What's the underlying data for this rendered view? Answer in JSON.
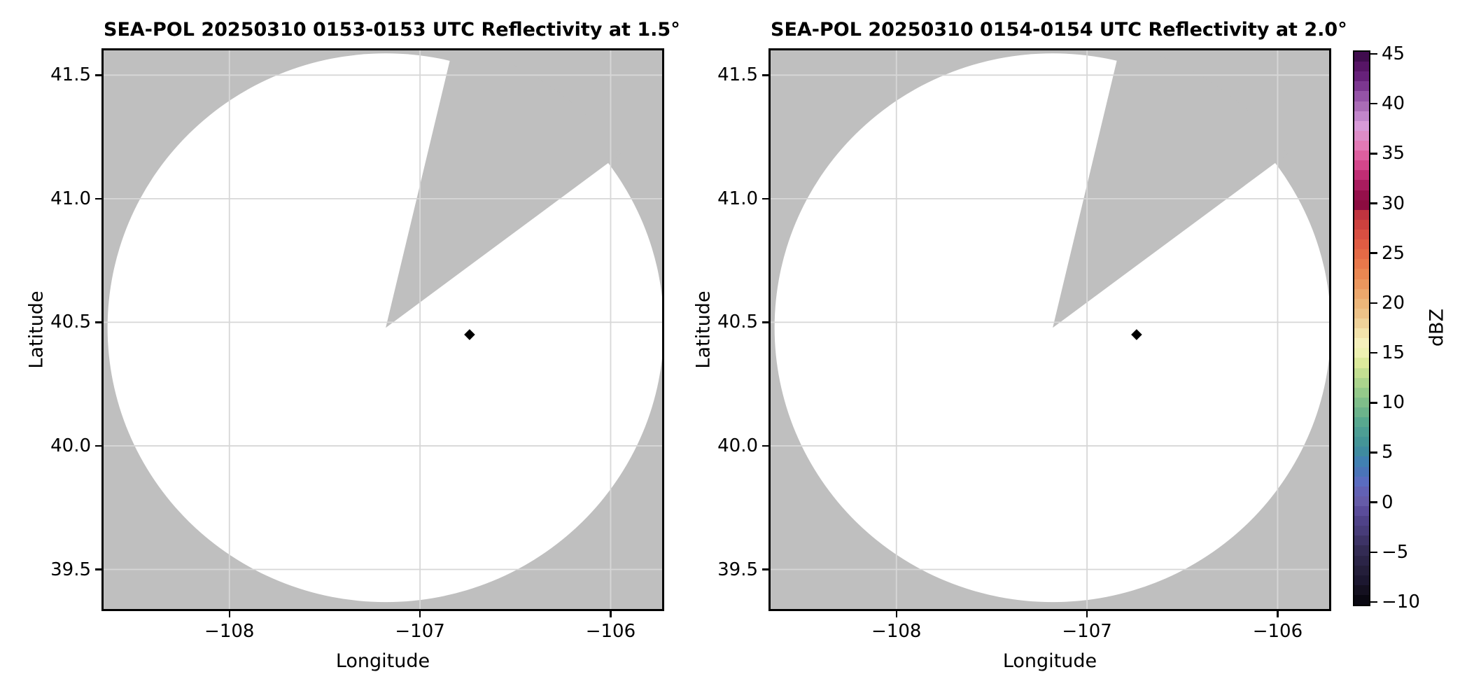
{
  "figure_colors": {
    "background": "#ffffff",
    "no_data_gray": "#bfbfbf",
    "coverage_white": "#ffffff",
    "gridline": "#d7d7d7",
    "frame": "#000000",
    "text": "#000000",
    "echo_point": "#000000"
  },
  "chart_data": [
    {
      "type": "heatmap",
      "subtype": "radar-ppi-reflectivity",
      "title": "SEA-POL 20250310 0153-0153 UTC Reflectivity at 1.5°",
      "radar_name": "SEA-POL",
      "date": "20250310",
      "time_utc": "0153-0153",
      "field": "Reflectivity",
      "elevation_deg": 1.5,
      "xlabel": "Longitude",
      "ylabel": "Latitude",
      "xlim": [
        -108.66,
        -105.73
      ],
      "ylim": [
        39.34,
        41.6
      ],
      "grid": true,
      "x_ticks": [
        {
          "value": -108,
          "label": "−108"
        },
        {
          "value": -107,
          "label": "−107"
        },
        {
          "value": -106,
          "label": "−106"
        }
      ],
      "y_ticks": [
        {
          "value": 41.5,
          "label": "41.5"
        },
        {
          "value": 41.0,
          "label": "41.0"
        },
        {
          "value": 40.5,
          "label": "40.5"
        },
        {
          "value": 40.0,
          "label": "40.0"
        },
        {
          "value": 39.5,
          "label": "39.5"
        }
      ],
      "radar_site": {
        "lon": -107.18,
        "lat": 40.478
      },
      "coverage_radius_deg_lat": 1.11,
      "blocked_sector_azimuth_deg": [
        13.5,
        53.5
      ],
      "echo_points": [
        {
          "lon": -106.74,
          "lat": 40.45,
          "marker": "diamond",
          "color": "#000000",
          "dbz_from_color": -10
        }
      ]
    },
    {
      "type": "heatmap",
      "subtype": "radar-ppi-reflectivity",
      "title": "SEA-POL 20250310 0154-0154 UTC Reflectivity at 2.0°",
      "radar_name": "SEA-POL",
      "date": "20250310",
      "time_utc": "0154-0154",
      "field": "Reflectivity",
      "elevation_deg": 2.0,
      "xlabel": "Longitude",
      "ylabel": "Latitude",
      "xlim": [
        -108.66,
        -105.73
      ],
      "ylim": [
        39.34,
        41.6
      ],
      "grid": true,
      "x_ticks": [
        {
          "value": -108,
          "label": "−108"
        },
        {
          "value": -107,
          "label": "−107"
        },
        {
          "value": -106,
          "label": "−106"
        }
      ],
      "y_ticks": [
        {
          "value": 41.5,
          "label": "41.5"
        },
        {
          "value": 41.0,
          "label": "41.0"
        },
        {
          "value": 40.5,
          "label": "40.5"
        },
        {
          "value": 40.0,
          "label": "40.0"
        },
        {
          "value": 39.5,
          "label": "39.5"
        }
      ],
      "radar_site": {
        "lon": -107.18,
        "lat": 40.478
      },
      "coverage_radius_deg_lat": 1.11,
      "blocked_sector_azimuth_deg": [
        13.5,
        53.5
      ],
      "echo_points": [
        {
          "lon": -106.74,
          "lat": 40.45,
          "marker": "diamond",
          "color": "#000000",
          "dbz_from_color": -10
        }
      ]
    }
  ],
  "colorbar": {
    "label": "dBZ",
    "orientation": "vertical",
    "vmin": -10,
    "vmax": 45,
    "band_step_dbz": 1,
    "ticks": [
      {
        "value": 45,
        "label": "45"
      },
      {
        "value": 40,
        "label": "40"
      },
      {
        "value": 35,
        "label": "35"
      },
      {
        "value": 30,
        "label": "30"
      },
      {
        "value": 25,
        "label": "25"
      },
      {
        "value": 20,
        "label": "20"
      },
      {
        "value": 15,
        "label": "15"
      },
      {
        "value": 10,
        "label": "10"
      },
      {
        "value": 5,
        "label": "5"
      },
      {
        "value": 0,
        "label": "0"
      },
      {
        "value": -5,
        "label": "−5"
      },
      {
        "value": -10,
        "label": "−10"
      }
    ],
    "band_colors_low_to_high": [
      "#0a0812",
      "#141020",
      "#1c1730",
      "#241e3a",
      "#2b2447",
      "#332b54",
      "#3d3366",
      "#473c79",
      "#4f4288",
      "#5a4c9a",
      "#655ba8",
      "#6261b4",
      "#5a6cc0",
      "#4a74b8",
      "#4180b2",
      "#3f8ba0",
      "#449597",
      "#4d9e94",
      "#58a88f",
      "#6cb38b",
      "#7fbe8a",
      "#94c98a",
      "#abd48d",
      "#c3df92",
      "#dcea9c",
      "#eef1b2",
      "#f5f0bc",
      "#f3e3ac",
      "#efd29a",
      "#edc288",
      "#ecb67a",
      "#eca76c",
      "#eb975e",
      "#ea8752",
      "#e8784b",
      "#e46a46",
      "#e05c43",
      "#d84f42",
      "#cc413e",
      "#c0343f",
      "#8c0c40",
      "#95104b",
      "#a91c5e",
      "#c02d74",
      "#d4468b",
      "#dd5f9f",
      "#e279b5",
      "#dd8cc7",
      "#d89ad8",
      "#c286cb",
      "#aa6cb6",
      "#9553a7",
      "#7c3790",
      "#67217a",
      "#571566",
      "#400d4e"
    ]
  }
}
